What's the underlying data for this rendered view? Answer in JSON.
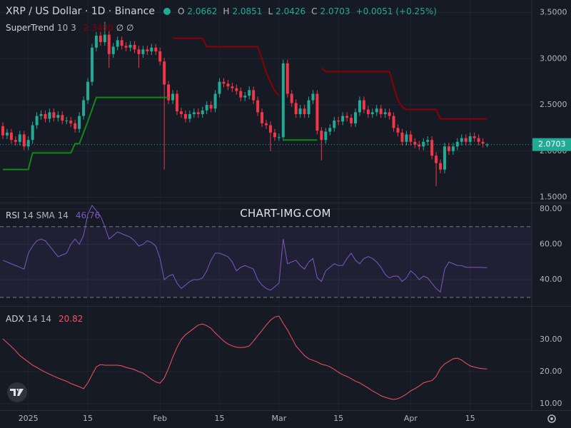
{
  "header": {
    "symbol": "XRP / US Dollar · 1D · Binance",
    "open_key": "O",
    "high_key": "H",
    "low_key": "L",
    "close_key": "C",
    "change": "+0.0051 (+0.25%)"
  },
  "watermark": "CHART-IMG.COM",
  "chart_data": [
    {
      "type": "candlestick",
      "up_color": "#22ab94",
      "down_color": "#f23645",
      "xlim": [
        -0.67,
        124.5
      ],
      "ylim": [
        1.45,
        3.62
      ],
      "xticks": [
        {
          "value": 6,
          "label": "2025"
        },
        {
          "value": 20,
          "label": "15"
        },
        {
          "value": 37,
          "label": "Feb"
        },
        {
          "value": 51,
          "label": "15"
        },
        {
          "value": 65,
          "label": "Mar"
        },
        {
          "value": 79,
          "label": "15"
        },
        {
          "value": 96,
          "label": "Apr"
        },
        {
          "value": 110,
          "label": "15"
        }
      ],
      "yticks": [
        {
          "value": 1.5,
          "label": "1.5000"
        },
        {
          "value": 2.0,
          "label": "2.0000"
        },
        {
          "value": 2.5,
          "label": "2.5000"
        },
        {
          "value": 3.0,
          "label": "3.0000"
        },
        {
          "value": 3.5,
          "label": "3.5000"
        }
      ],
      "grid": true,
      "open": [
        2.27,
        2.17,
        2.2,
        2.12,
        2.1,
        2.18,
        2.05,
        2.12,
        2.28,
        2.38,
        2.4,
        2.35,
        2.42,
        2.36,
        2.39,
        2.33,
        2.33,
        2.3,
        2.24,
        2.38,
        2.55,
        2.75,
        3.12,
        3.25,
        3.18,
        3.26,
        3.05,
        3.13,
        3.2,
        3.14,
        3.12,
        3.15,
        3.1,
        3.05,
        3.1,
        3.08,
        3.12,
        3.08,
        2.97,
        2.72,
        2.55,
        2.62,
        2.43,
        2.4,
        2.35,
        2.4,
        2.42,
        2.4,
        2.44,
        2.5,
        2.46,
        2.62,
        2.75,
        2.73,
        2.7,
        2.68,
        2.65,
        2.58,
        2.6,
        2.66,
        2.55,
        2.42,
        2.3,
        2.28,
        2.2,
        2.15,
        2.15,
        2.95,
        2.62,
        2.52,
        2.4,
        2.46,
        2.4,
        2.55,
        2.62,
        2.22,
        2.12,
        2.21,
        2.25,
        2.33,
        2.32,
        2.38,
        2.36,
        2.3,
        2.42,
        2.55,
        2.45,
        2.4,
        2.42,
        2.46,
        2.4,
        2.42,
        2.38,
        2.25,
        2.2,
        2.1,
        2.18,
        2.1,
        2.07,
        2.05,
        2.1,
        2.12,
        1.95,
        1.87,
        1.8,
        2.05,
        2.0,
        2.05,
        2.1,
        2.14,
        2.1,
        2.16,
        2.14,
        2.1,
        2.0662
      ],
      "high": [
        2.31,
        2.24,
        2.24,
        2.16,
        2.22,
        2.22,
        2.16,
        2.32,
        2.42,
        2.44,
        2.44,
        2.46,
        2.46,
        2.43,
        2.43,
        2.37,
        2.37,
        2.34,
        2.42,
        2.59,
        2.79,
        3.16,
        3.29,
        3.29,
        3.4,
        3.3,
        3.17,
        3.24,
        3.24,
        3.18,
        3.19,
        3.19,
        3.14,
        3.14,
        3.14,
        3.16,
        3.16,
        3.12,
        3.01,
        2.76,
        2.66,
        2.66,
        2.47,
        2.44,
        2.44,
        2.46,
        2.46,
        2.48,
        2.54,
        2.54,
        2.66,
        2.79,
        2.79,
        2.77,
        2.74,
        2.72,
        2.69,
        2.64,
        2.7,
        2.7,
        2.59,
        2.46,
        2.34,
        2.32,
        2.24,
        2.19,
        2.99,
        2.99,
        2.66,
        2.56,
        2.5,
        2.5,
        2.59,
        2.66,
        2.66,
        2.26,
        2.25,
        2.29,
        2.37,
        2.37,
        2.42,
        2.42,
        2.4,
        2.46,
        2.59,
        2.59,
        2.49,
        2.46,
        2.5,
        2.5,
        2.46,
        2.46,
        2.42,
        2.29,
        2.24,
        2.22,
        2.22,
        2.14,
        2.11,
        2.14,
        2.16,
        2.16,
        1.99,
        1.91,
        2.09,
        2.09,
        2.09,
        2.14,
        2.18,
        2.18,
        2.2,
        2.2,
        2.18,
        2.14,
        2.0851
      ],
      "low": [
        2.13,
        2.13,
        2.08,
        2.06,
        2.06,
        2.01,
        2.01,
        2.08,
        2.24,
        2.34,
        2.31,
        2.31,
        2.32,
        2.32,
        2.29,
        2.29,
        2.26,
        2.2,
        2.2,
        2.34,
        2.51,
        2.71,
        3.08,
        3.14,
        3.14,
        2.9,
        3.01,
        3.09,
        3.1,
        3.08,
        3.08,
        3.06,
        2.9,
        3.01,
        3.04,
        3.04,
        3.04,
        2.93,
        1.8,
        2.51,
        2.51,
        2.39,
        2.36,
        2.31,
        2.31,
        2.36,
        2.36,
        2.36,
        2.4,
        2.42,
        2.42,
        2.58,
        2.69,
        2.66,
        2.64,
        2.61,
        2.54,
        2.54,
        2.56,
        2.51,
        2.38,
        2.26,
        2.24,
        2.0,
        2.11,
        2.11,
        2.11,
        2.58,
        2.48,
        2.36,
        2.36,
        2.36,
        2.36,
        2.51,
        2.18,
        1.9,
        2.08,
        2.17,
        2.21,
        2.28,
        2.28,
        2.32,
        2.26,
        2.26,
        2.38,
        2.41,
        2.36,
        2.36,
        2.38,
        2.36,
        2.36,
        2.34,
        2.21,
        2.16,
        2.06,
        2.06,
        2.06,
        2.03,
        2.01,
        2.01,
        2.06,
        1.91,
        1.62,
        1.76,
        1.76,
        1.96,
        1.96,
        2.01,
        2.06,
        2.06,
        2.06,
        2.1,
        2.06,
        2.04,
        2.0426
      ],
      "close": [
        2.17,
        2.2,
        2.12,
        2.1,
        2.18,
        2.05,
        2.12,
        2.28,
        2.38,
        2.4,
        2.35,
        2.42,
        2.36,
        2.39,
        2.33,
        2.33,
        2.3,
        2.24,
        2.38,
        2.55,
        2.75,
        3.12,
        3.25,
        3.18,
        3.26,
        3.05,
        3.13,
        3.2,
        3.14,
        3.12,
        3.15,
        3.1,
        3.05,
        3.1,
        3.08,
        3.12,
        3.08,
        2.97,
        2.72,
        2.55,
        2.62,
        2.43,
        2.4,
        2.35,
        2.4,
        2.42,
        2.4,
        2.44,
        2.5,
        2.46,
        2.62,
        2.75,
        2.73,
        2.7,
        2.68,
        2.65,
        2.58,
        2.6,
        2.66,
        2.55,
        2.42,
        2.3,
        2.28,
        2.2,
        2.15,
        2.15,
        2.95,
        2.62,
        2.52,
        2.4,
        2.46,
        2.4,
        2.55,
        2.62,
        2.22,
        2.12,
        2.21,
        2.25,
        2.33,
        2.32,
        2.38,
        2.36,
        2.3,
        2.42,
        2.55,
        2.45,
        2.4,
        2.42,
        2.46,
        2.4,
        2.42,
        2.38,
        2.25,
        2.2,
        2.1,
        2.18,
        2.1,
        2.07,
        2.05,
        2.1,
        2.12,
        1.95,
        1.87,
        1.8,
        2.05,
        2.0,
        2.05,
        2.1,
        2.14,
        2.1,
        2.16,
        2.14,
        2.1,
        2.08,
        2.0703
      ],
      "indicator": {
        "name": "SuperTrend",
        "params": "10 3",
        "value_label": "2.3480",
        "up_color": "#118a11",
        "down_color": "#8b0000",
        "up": [
          1.8,
          1.8,
          1.8,
          1.8,
          1.8,
          1.8,
          1.8,
          1.98,
          1.98,
          1.98,
          1.98,
          1.98,
          1.98,
          1.98,
          1.98,
          1.98,
          1.98,
          2.08,
          2.08,
          2.2,
          2.32,
          2.45,
          2.58,
          2.58,
          2.58,
          2.58,
          2.58,
          2.58,
          2.58,
          2.58,
          2.58,
          2.58,
          2.58,
          2.58,
          2.58,
          2.58,
          2.58,
          2.58,
          2.58,
          2.58,
          null,
          null,
          null,
          null,
          null,
          null,
          null,
          null,
          null,
          null,
          null,
          null,
          null,
          null,
          null,
          null,
          null,
          null,
          null,
          null,
          null,
          null,
          null,
          null,
          null,
          null,
          2.12,
          2.12,
          2.12,
          2.12,
          2.12,
          2.12,
          2.12,
          2.12,
          2.12,
          null,
          null,
          null,
          null,
          null,
          null,
          null,
          null,
          null,
          null,
          null,
          null,
          null,
          null,
          null,
          null,
          null,
          null,
          null,
          null,
          null,
          null,
          null,
          null,
          null,
          null,
          null,
          null,
          null,
          null,
          null,
          null,
          null,
          null,
          null,
          null,
          null,
          null,
          null,
          null,
          null
        ],
        "down": [
          null,
          null,
          null,
          null,
          null,
          null,
          null,
          null,
          null,
          null,
          null,
          null,
          null,
          null,
          null,
          null,
          null,
          null,
          null,
          null,
          null,
          null,
          null,
          null,
          null,
          null,
          null,
          null,
          null,
          null,
          null,
          null,
          null,
          null,
          null,
          null,
          null,
          null,
          null,
          null,
          3.22,
          3.22,
          3.22,
          3.22,
          3.22,
          3.22,
          3.22,
          3.22,
          3.13,
          3.13,
          3.13,
          3.13,
          3.13,
          3.13,
          3.13,
          3.13,
          3.13,
          3.13,
          3.13,
          3.13,
          3.13,
          3.0,
          2.85,
          2.75,
          2.65,
          2.6,
          null,
          null,
          null,
          null,
          null,
          null,
          null,
          null,
          null,
          2.9,
          2.86,
          2.86,
          2.86,
          2.86,
          2.86,
          2.86,
          2.86,
          2.86,
          2.86,
          2.86,
          2.86,
          2.86,
          2.86,
          2.86,
          2.86,
          2.86,
          2.7,
          2.55,
          2.48,
          2.45,
          2.45,
          2.45,
          2.45,
          2.45,
          2.45,
          2.45,
          2.45,
          2.348,
          2.348,
          2.348,
          2.348,
          2.348,
          2.348,
          2.348,
          2.348,
          2.348,
          2.348,
          2.348,
          2.348
        ]
      }
    },
    {
      "type": "line",
      "name": "RSI",
      "params": "14 SMA 14",
      "color": "#7e57c2",
      "xlim": [
        -0.67,
        124.5
      ],
      "ylim": [
        25.5,
        83.2
      ],
      "yticks": [
        {
          "value": 40,
          "label": "40.00"
        },
        {
          "value": 60,
          "label": "60.00"
        },
        {
          "value": 80,
          "label": "80.00"
        }
      ],
      "band": [
        30,
        70
      ],
      "values": [
        51,
        50,
        49,
        48,
        47,
        46,
        55,
        59,
        62,
        63,
        62,
        59,
        56,
        53,
        54,
        55,
        60,
        63,
        60,
        65,
        77,
        82,
        79,
        76,
        70,
        63,
        65,
        67,
        66,
        65,
        64,
        62,
        59,
        60,
        62,
        61,
        59,
        52,
        40,
        42,
        43,
        38,
        35,
        37,
        39,
        40,
        40,
        41,
        45,
        51,
        55,
        55,
        54,
        53,
        50,
        45,
        47,
        48,
        47,
        46,
        40,
        37,
        35,
        34,
        36,
        38,
        63,
        49,
        50,
        51,
        48,
        46,
        50,
        52,
        41,
        39,
        45,
        47,
        49,
        48,
        48,
        52,
        55,
        51,
        49,
        52,
        53,
        52,
        50,
        47,
        43,
        41,
        42,
        42,
        39,
        41,
        45,
        43,
        40,
        42,
        41,
        38,
        35,
        33,
        46,
        50,
        49,
        48,
        48,
        47,
        47,
        47,
        47,
        46.9,
        46.76
      ]
    },
    {
      "type": "line",
      "name": "ADX",
      "params": "14 14",
      "color": "#f7525f",
      "xlim": [
        -0.67,
        124.5
      ],
      "ylim": [
        8,
        40.2
      ],
      "yticks": [
        {
          "value": 10,
          "label": "10.00"
        },
        {
          "value": 20,
          "label": "20.00"
        },
        {
          "value": 30,
          "label": "30.00"
        }
      ],
      "values": [
        30.2,
        29,
        27.8,
        26.5,
        25,
        24,
        23,
        22,
        21.3,
        20.5,
        19.8,
        19.2,
        18.6,
        18,
        17.5,
        17,
        16.3,
        15.8,
        15.3,
        14.7,
        16.5,
        19,
        21.5,
        22.2,
        22,
        22,
        22,
        22,
        21.8,
        21.3,
        21,
        20.6,
        20,
        19.5,
        18.6,
        17.6,
        16.8,
        16.4,
        18,
        21,
        24.5,
        27.5,
        30,
        31.5,
        32.5,
        33.5,
        34.5,
        34.8,
        34.3,
        33.5,
        32,
        30.8,
        29.5,
        28.6,
        28,
        27.6,
        27.5,
        27.6,
        28,
        29.5,
        31.2,
        32.8,
        34.5,
        36,
        37,
        37.3,
        35,
        33,
        30.5,
        28,
        26.5,
        25,
        24,
        23.5,
        23,
        22.3,
        22,
        21.5,
        20.7,
        19.8,
        19,
        18.5,
        17.8,
        17,
        16.5,
        15.7,
        14.9,
        14,
        13.3,
        12.5,
        12,
        11.6,
        11.3,
        11.6,
        12.2,
        13,
        14,
        14.7,
        15.5,
        16.5,
        16.9,
        17.2,
        18.5,
        21,
        22.4,
        23.2,
        24,
        24.2,
        23.6,
        22.6,
        21.8,
        21.4,
        21.1,
        20.9,
        20.82
      ]
    }
  ]
}
